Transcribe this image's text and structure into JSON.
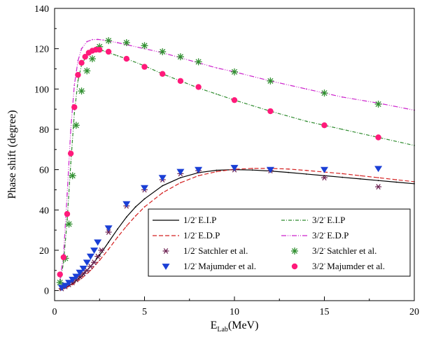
{
  "chart_data": {
    "type": "scatter",
    "xlabel": {
      "main": "E",
      "sub": "Lab",
      "rest": "(MeV)"
    },
    "ylabel": "Phase shift (degree)",
    "xlim": [
      0,
      20
    ],
    "ylim": [
      -5,
      140
    ],
    "xticks": [
      "0",
      "5",
      "10",
      "15",
      "20"
    ],
    "yticks": [
      "0",
      "20",
      "40",
      "60",
      "80",
      "100",
      "120",
      "140"
    ],
    "grid": false,
    "legend_position": "bottom-right",
    "legend": [
      {
        "state": "1/2",
        "text": "E.I.P",
        "series": "curve_12_eip"
      },
      {
        "state": "3/2",
        "text": "E.I.P",
        "series": "curve_32_eip"
      },
      {
        "state": "1/2",
        "text": "E.D.P",
        "series": "curve_12_edp"
      },
      {
        "state": "3/2",
        "text": "E.D.P",
        "series": "curve_32_edp"
      },
      {
        "state": "1/2",
        "text": "Satchler et al.",
        "series": "sat_12"
      },
      {
        "state": "3/2",
        "text": "Satchler et al.",
        "series": "sat_32"
      },
      {
        "state": "1/2",
        "text": "Majumder et al.",
        "series": "maj_12"
      },
      {
        "state": "3/2",
        "text": "Majumder et al.",
        "series": "maj_32"
      }
    ],
    "series": [
      {
        "id": "curve_12_eip",
        "kind": "line",
        "color": "#000000",
        "dash": "solid",
        "x": [
          0.3,
          0.6,
          1,
          1.5,
          2,
          2.5,
          3,
          3.5,
          4,
          4.5,
          5,
          6,
          7,
          8,
          9,
          10,
          11,
          12,
          13,
          14,
          15,
          16,
          17,
          18,
          19,
          20
        ],
        "y": [
          0.5,
          1.5,
          3.5,
          7,
          12,
          17.5,
          24,
          30.5,
          36.5,
          41.5,
          45.5,
          52,
          56,
          58.5,
          59.7,
          60,
          59.8,
          59.3,
          58.6,
          57.8,
          57,
          56.2,
          55.4,
          54.6,
          53.8,
          53
        ]
      },
      {
        "id": "curve_12_edp",
        "kind": "line",
        "color": "#d42020",
        "dash": "dashed",
        "x": [
          0.3,
          0.6,
          1,
          1.5,
          2,
          2.5,
          3,
          3.5,
          4,
          4.5,
          5,
          6,
          7,
          8,
          9,
          10,
          11,
          12,
          13,
          14,
          15,
          16,
          17,
          18,
          19,
          20
        ],
        "y": [
          0.5,
          1.2,
          3,
          6,
          10,
          15,
          20.5,
          26.5,
          32,
          37,
          41.5,
          48.5,
          53.5,
          57,
          59,
          60.2,
          60.6,
          60.6,
          60.3,
          59.6,
          58.8,
          58,
          57,
          56,
          55,
          54
        ]
      },
      {
        "id": "curve_32_eip",
        "kind": "line",
        "color": "#2e8b2e",
        "dash": "dashdot",
        "x": [
          0.3,
          0.5,
          0.7,
          0.9,
          1.1,
          1.3,
          1.5,
          1.8,
          2.1,
          2.4,
          2.7,
          3,
          3.5,
          4,
          5,
          6,
          7,
          8,
          9,
          10,
          12,
          14,
          16,
          18,
          20
        ],
        "y": [
          4,
          14,
          35,
          63,
          88,
          104,
          112,
          117,
          119,
          119.5,
          119,
          118,
          116.5,
          115,
          111.5,
          107.5,
          104,
          100.5,
          97.5,
          94.5,
          89,
          84,
          80,
          76,
          72
        ]
      },
      {
        "id": "curve_32_edp",
        "kind": "line",
        "color": "#cc22cc",
        "dash": "dashdotdot",
        "x": [
          0.3,
          0.5,
          0.7,
          0.9,
          1.1,
          1.3,
          1.5,
          1.8,
          2.1,
          2.4,
          2.7,
          3,
          3.5,
          4,
          5,
          6,
          7,
          8,
          9,
          10,
          12,
          14,
          16,
          18,
          20
        ],
        "y": [
          5,
          18,
          48,
          80,
          102,
          114,
          120,
          123.5,
          124.5,
          124.6,
          124.3,
          123.8,
          123,
          122,
          120,
          118,
          115.5,
          113,
          110.5,
          108.5,
          104,
          100,
          96,
          93,
          89.5
        ]
      },
      {
        "id": "sat_12",
        "kind": "points",
        "marker": "asterisk",
        "color": "#6b1f4f",
        "x": [
          0.4,
          0.6,
          0.8,
          1,
          1.2,
          1.4,
          1.6,
          1.8,
          2,
          2.2,
          2.4,
          2.6,
          3,
          4,
          5,
          6,
          7,
          8,
          10,
          12,
          15,
          18
        ],
        "y": [
          1,
          2,
          3,
          4,
          5.5,
          7,
          8.5,
          10,
          12,
          14,
          17,
          20,
          29,
          42,
          50,
          55,
          58,
          59.5,
          60,
          59.5,
          56,
          51.5
        ]
      },
      {
        "id": "sat_32",
        "kind": "points",
        "marker": "starburst",
        "color": "#2f8f2f",
        "x": [
          0.3,
          0.6,
          0.8,
          1,
          1.2,
          1.5,
          1.8,
          2.1,
          2.5,
          3,
          4,
          5,
          6,
          7,
          8,
          10,
          12,
          15,
          18
        ],
        "y": [
          4,
          16,
          33,
          57,
          82,
          99,
          109,
          115,
          121,
          124,
          123,
          121.5,
          118.5,
          116,
          113.5,
          108.5,
          104,
          98,
          92.5
        ]
      },
      {
        "id": "maj_12",
        "kind": "points",
        "marker": "triangle-down",
        "color": "#1a3fd6",
        "x": [
          0.4,
          0.6,
          0.8,
          1,
          1.2,
          1.4,
          1.6,
          1.8,
          2,
          2.2,
          2.4,
          3,
          4,
          5,
          6,
          7,
          8,
          10,
          12,
          15,
          18
        ],
        "y": [
          1.5,
          2.5,
          4,
          5.5,
          7,
          9,
          11,
          14,
          17,
          20,
          24,
          31,
          43,
          51,
          56,
          59,
          60,
          61,
          60,
          60,
          60.5
        ]
      },
      {
        "id": "maj_32",
        "kind": "points",
        "marker": "circle",
        "color": "#ff1a7a",
        "x": [
          0.3,
          0.5,
          0.7,
          0.9,
          1.1,
          1.3,
          1.5,
          1.7,
          1.9,
          2.1,
          2.3,
          2.5,
          3,
          4,
          5,
          6,
          7,
          8,
          10,
          12,
          15,
          18
        ],
        "y": [
          8,
          16.5,
          38,
          68,
          91,
          107,
          113,
          116,
          118,
          119,
          119.5,
          119.5,
          118.5,
          115,
          111,
          107.5,
          104,
          101,
          94.5,
          89,
          82,
          76
        ]
      }
    ]
  }
}
